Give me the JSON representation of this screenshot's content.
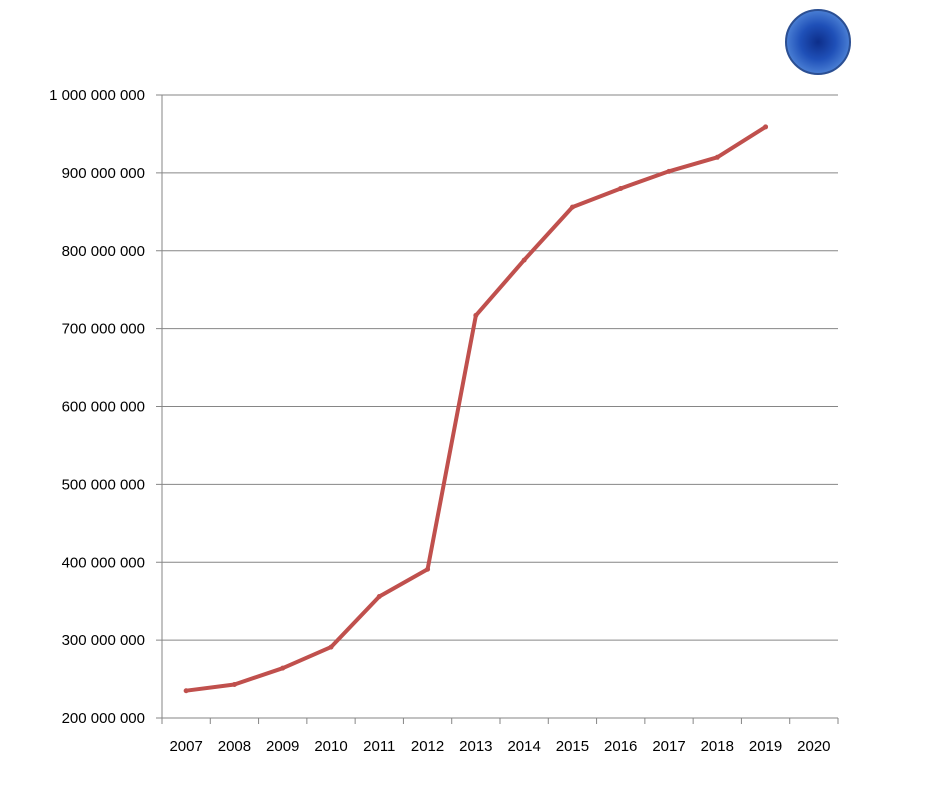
{
  "colors": {
    "line": "#c0504d",
    "grid": "#868686",
    "axis": "#868686",
    "badge": "#1f50b8"
  },
  "icons": {
    "badge": "blue-circle-badge-icon"
  },
  "chart_data": {
    "type": "line",
    "title": "",
    "xlabel": "",
    "ylabel": "",
    "categories": [
      "2007",
      "2008",
      "2009",
      "2010",
      "2011",
      "2012",
      "2013",
      "2014",
      "2015",
      "2016",
      "2017",
      "2018",
      "2019",
      "2020"
    ],
    "series": [
      {
        "values": [
          235000000,
          243000000,
          264000000,
          291000000,
          356000000,
          391000000,
          717000000,
          788000000,
          856000000,
          880000000,
          902000000,
          920000000,
          959000000,
          null
        ]
      }
    ],
    "yticks": [
      {
        "value": 200000000,
        "label": "200 000 000"
      },
      {
        "value": 300000000,
        "label": "300 000 000"
      },
      {
        "value": 400000000,
        "label": "400 000 000"
      },
      {
        "value": 500000000,
        "label": "500 000 000"
      },
      {
        "value": 600000000,
        "label": "600 000 000"
      },
      {
        "value": 700000000,
        "label": "700 000 000"
      },
      {
        "value": 800000000,
        "label": "800 000 000"
      },
      {
        "value": 900000000,
        "label": "900 000 000"
      },
      {
        "value": 1000000000,
        "label": "1 000 000 000"
      }
    ],
    "ylim": [
      200000000,
      1000000000
    ],
    "grid": true,
    "legend": "none"
  }
}
